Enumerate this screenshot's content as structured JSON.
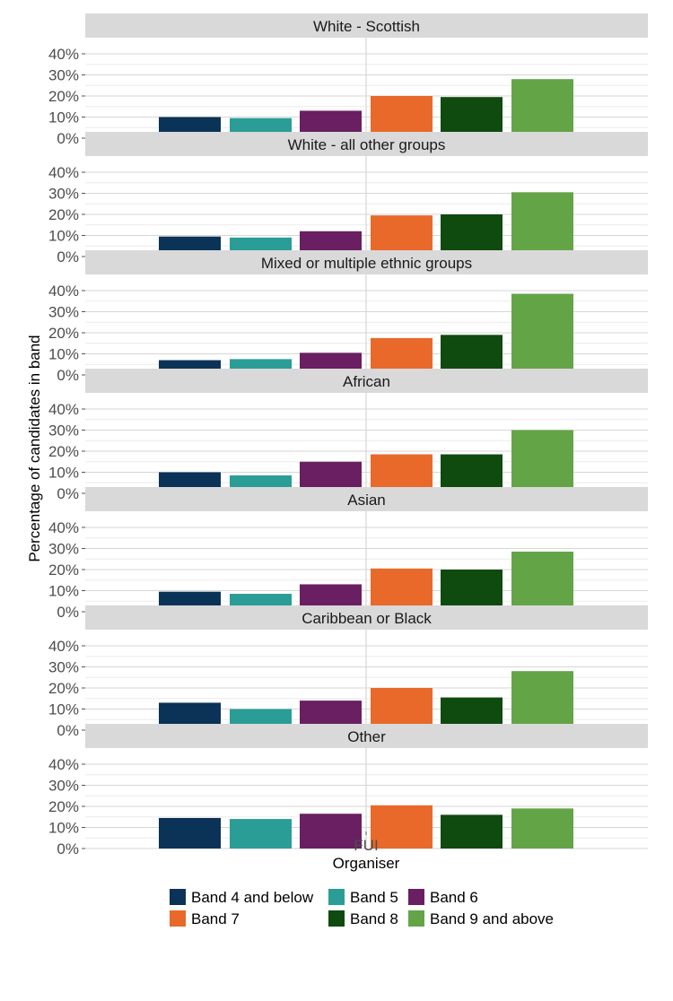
{
  "chart_data": {
    "type": "bar",
    "facet_by": "ethnic group",
    "x_category": "FUI",
    "xlabel": "Organiser",
    "ylabel": "Percentage of candidates in band",
    "ylim": [
      0,
      40
    ],
    "y_ticks": [
      "0%",
      "10%",
      "20%",
      "30%",
      "40%"
    ],
    "grid": true,
    "legend_position": "bottom",
    "series": [
      {
        "name": "Band 4 and below",
        "color": "#0b3357"
      },
      {
        "name": "Band 5",
        "color": "#2a9d96"
      },
      {
        "name": "Band 6",
        "color": "#6a1f62"
      },
      {
        "name": "Band 7",
        "color": "#e8692a"
      },
      {
        "name": "Band 8",
        "color": "#0f4a0f"
      },
      {
        "name": "Band 9 and above",
        "color": "#63a447"
      }
    ],
    "panels": [
      {
        "label": "White - Scottish",
        "values": [
          10,
          9.5,
          13,
          20,
          19.5,
          28
        ]
      },
      {
        "label": "White - all other groups",
        "values": [
          9.5,
          9,
          12,
          19.5,
          20,
          30.5
        ]
      },
      {
        "label": "Mixed or multiple ethnic groups",
        "values": [
          7,
          7.5,
          10.5,
          17.5,
          19,
          38.5
        ]
      },
      {
        "label": "African",
        "values": [
          10,
          8.5,
          15,
          18.5,
          18.5,
          30
        ]
      },
      {
        "label": "Asian",
        "values": [
          9.5,
          8.5,
          13,
          20.5,
          20,
          28.5
        ]
      },
      {
        "label": "Caribbean or Black",
        "values": [
          13,
          10,
          14,
          20,
          15.5,
          28
        ]
      },
      {
        "label": "Other",
        "values": [
          14.5,
          14,
          16.5,
          20.5,
          16,
          19
        ]
      }
    ]
  }
}
